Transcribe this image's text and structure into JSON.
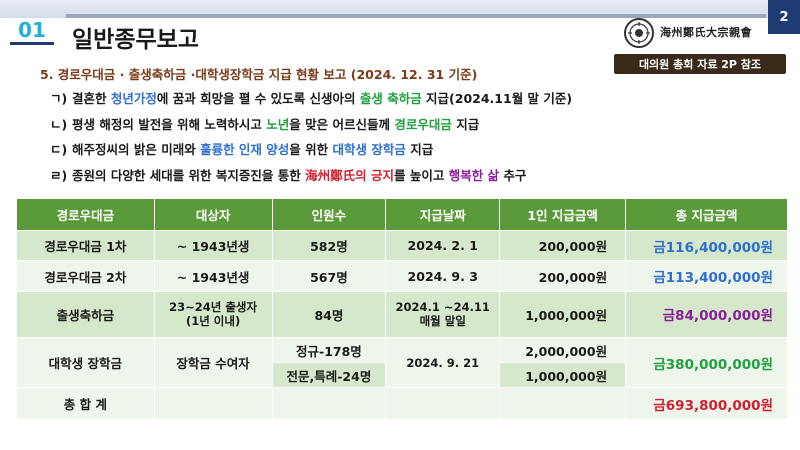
{
  "header": {
    "section_number": "01",
    "title": "일반종무보고",
    "page_number": "2",
    "org_name": "海州鄭氏大宗親會",
    "ref_badge": "대의원 총회 자료 2P 참조"
  },
  "subtitle": "5. 경로우대금 · 출생축하금 ·대학생장학금 지급 현황 보고 (2024. 12. 31 기준)",
  "bullets": [
    {
      "mark": "ㄱ)",
      "parts": [
        {
          "text": "결혼한 ",
          "color": ""
        },
        {
          "text": "청년가정",
          "color": "blue"
        },
        {
          "text": "에 꿈과 희망을 펼 수 있도록 신생아의 ",
          "color": ""
        },
        {
          "text": "출생 축하금",
          "color": "green"
        },
        {
          "text": " 지급(2024.11월 말 기준)",
          "color": ""
        }
      ]
    },
    {
      "mark": "ㄴ)",
      "parts": [
        {
          "text": "평생 해정의 발전을 위해 노력하시고 ",
          "color": ""
        },
        {
          "text": "노년",
          "color": "green"
        },
        {
          "text": "을 맞은 어르신들께 ",
          "color": ""
        },
        {
          "text": "경로우대금",
          "color": "green"
        },
        {
          "text": " 지급",
          "color": ""
        }
      ]
    },
    {
      "mark": "ㄷ)",
      "parts": [
        {
          "text": "해주정씨의 밝은 미래와 ",
          "color": ""
        },
        {
          "text": "훌륭한 인재 양성",
          "color": "blue"
        },
        {
          "text": "을 위한 ",
          "color": ""
        },
        {
          "text": "대학생 장학금",
          "color": "blue"
        },
        {
          "text": " 지급",
          "color": ""
        }
      ]
    },
    {
      "mark": "ㄹ)",
      "parts": [
        {
          "text": "종원의 다양한 세대를 위한 복지증진을 통한 ",
          "color": ""
        },
        {
          "text": "海州鄭氏의 긍지",
          "color": "red"
        },
        {
          "text": "를 높이고 ",
          "color": ""
        },
        {
          "text": "행복한 삶",
          "color": "purple"
        },
        {
          "text": " 추구",
          "color": ""
        }
      ]
    }
  ],
  "table": {
    "headers": [
      "경로우대금",
      "대상자",
      "인원수",
      "지급날짜",
      "1인 지급금액",
      "총 지급금액"
    ],
    "rows": [
      {
        "name": "경로우대금 1차",
        "target": "~ 1943년생",
        "count": "582명",
        "date": "2024. 2. 1",
        "per": "200,000원",
        "total": "금116,400,000원"
      },
      {
        "name": "경로우대금 2차",
        "target": "~ 1943년생",
        "count": "567명",
        "date": "2024. 9. 3",
        "per": "200,000원",
        "total": "금113,400,000원"
      },
      {
        "name": "출생축하금",
        "target": "23~24년 출생자\n(1년 이내)",
        "count": "84명",
        "date": "2024.1 ~24.11\n매월 말일",
        "per": "1,000,000원",
        "total": "금84,000,000원"
      }
    ],
    "scholarship": {
      "name": "대학생 장학금",
      "target": "장학금 수여자",
      "count_a": "정규-178명",
      "count_b": "전문,특례-24명",
      "date": "2024. 9. 21",
      "per_a": "2,000,000원",
      "per_b": "1,000,000원",
      "total": "금380,000,000원"
    },
    "grand_total": {
      "label": "총 합 계",
      "amount": "금693,800,000원"
    }
  },
  "colors": {
    "header_green": "#5b9a3a",
    "row_light": "#d6e8cb",
    "row_lighter": "#eef5ea",
    "blue": "#2f6fd0",
    "green": "#20a040",
    "red": "#d02030",
    "purple": "#8a1f9a",
    "accent_navy": "#1f3b73"
  }
}
